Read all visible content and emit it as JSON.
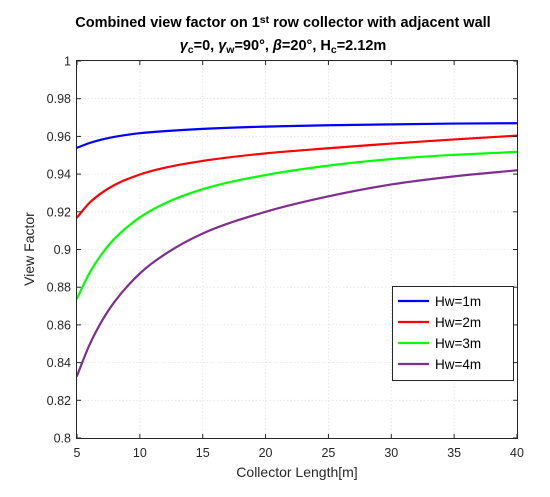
{
  "chart_data": {
    "type": "line",
    "title": {
      "line1_prefix": "Combined view factor on 1",
      "line1_sup": "st",
      "line1_suffix": " row collector with adjacent wall",
      "line2": [
        {
          "text": "γ",
          "style": "italic"
        },
        {
          "text": "c",
          "style": "sub"
        },
        {
          "text": "=0, ",
          "style": "normal"
        },
        {
          "text": "γ",
          "style": "italic"
        },
        {
          "text": "w",
          "style": "sub"
        },
        {
          "text": "=90°, ",
          "style": "normal"
        },
        {
          "text": "β",
          "style": "italic"
        },
        {
          "text": "=20°, H",
          "style": "normal"
        },
        {
          "text": "c",
          "style": "sub"
        },
        {
          "text": "=2.12m",
          "style": "normal"
        }
      ]
    },
    "xlabel": "Collector Length[m]",
    "ylabel": "View Factor",
    "xlim": [
      5,
      40
    ],
    "ylim": [
      0.8,
      1.0
    ],
    "xticks": [
      5,
      10,
      15,
      20,
      25,
      30,
      35,
      40
    ],
    "xtick_labels": [
      "5",
      "10",
      "15",
      "20",
      "25",
      "30",
      "35",
      "40"
    ],
    "yticks": [
      0.8,
      0.82,
      0.84,
      0.86,
      0.88,
      0.9,
      0.92,
      0.94,
      0.96,
      0.98,
      1.0
    ],
    "ytick_labels": [
      "0.8",
      "0.82",
      "0.84",
      "0.86",
      "0.88",
      "0.9",
      "0.92",
      "0.94",
      "0.96",
      "0.98",
      "1"
    ],
    "grid": true,
    "legend_position": "center-right",
    "x": [
      5,
      6,
      7,
      8,
      10,
      12,
      15,
      20,
      25,
      30,
      35,
      40
    ],
    "series": [
      {
        "name": "Hw=1m",
        "color": "#0000ff",
        "values": [
          0.954,
          0.9565,
          0.9584,
          0.9598,
          0.9617,
          0.9628,
          0.964,
          0.9652,
          0.9659,
          0.9664,
          0.9668,
          0.967
        ]
      },
      {
        "name": "Hw=2m",
        "color": "#ff0000",
        "values": [
          0.917,
          0.9248,
          0.9302,
          0.9343,
          0.9398,
          0.9434,
          0.947,
          0.951,
          0.9537,
          0.9562,
          0.9584,
          0.9604
        ]
      },
      {
        "name": "Hw=3m",
        "color": "#00ff00",
        "values": [
          0.874,
          0.8875,
          0.8978,
          0.9058,
          0.917,
          0.9245,
          0.932,
          0.9395,
          0.9445,
          0.948,
          0.9502,
          0.9518
        ]
      },
      {
        "name": "Hw=4m",
        "color": "#7e2f8e",
        "values": [
          0.833,
          0.8495,
          0.8623,
          0.8724,
          0.8873,
          0.8975,
          0.9085,
          0.92,
          0.9282,
          0.9345,
          0.9388,
          0.942
        ]
      }
    ]
  }
}
